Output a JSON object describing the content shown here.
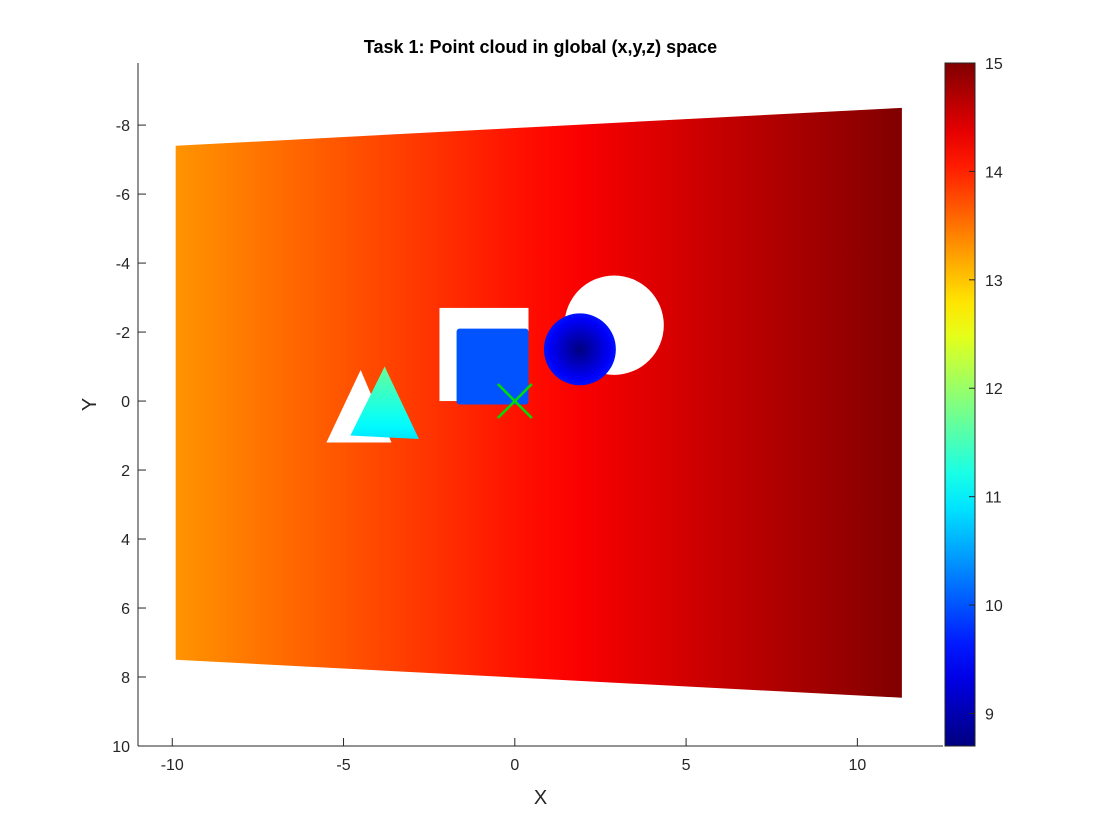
{
  "chart_data": {
    "type": "scatter",
    "title": "Task 1: Point cloud in global (x,y,z) space",
    "xlabel": "X",
    "ylabel": "Y",
    "xlim": [
      -11,
      12.5
    ],
    "ylim": [
      -9.8,
      10
    ],
    "y_direction": "reversed",
    "xticks": [
      -10,
      -5,
      0,
      5,
      10
    ],
    "yticks": [
      -8,
      -6,
      -4,
      -2,
      0,
      2,
      4,
      6,
      8,
      10
    ],
    "grid": false,
    "colormap": "jet",
    "color_variable": "z",
    "colorbar": {
      "position": "right",
      "limits": [
        8.7,
        15
      ],
      "ticks": [
        9,
        10,
        11,
        12,
        13,
        14,
        15
      ]
    },
    "background_plane": {
      "name": "plane",
      "corners": [
        {
          "x": -9.9,
          "y": -7.4
        },
        {
          "x": 11.3,
          "y": -8.5
        },
        {
          "x": 11.3,
          "y": 8.6
        },
        {
          "x": -9.9,
          "y": 7.5
        }
      ],
      "z_at_x_min": 13.3,
      "z_at_x_max": 15.0
    },
    "shadows": [
      {
        "shape": "triangle",
        "vertices": [
          {
            "x": -5.5,
            "y": 1.2
          },
          {
            "x": -4.5,
            "y": -0.9
          },
          {
            "x": -3.6,
            "y": 1.2
          }
        ]
      },
      {
        "shape": "rectangle",
        "x_range": [
          -2.2,
          0.4
        ],
        "y_range": [
          -2.7,
          0.0
        ]
      },
      {
        "shape": "circle",
        "center": {
          "x": 2.9,
          "y": -2.2
        },
        "radius": 1.45
      }
    ],
    "objects": [
      {
        "shape": "triangle",
        "vertices": [
          {
            "x": -4.8,
            "y": 1.0
          },
          {
            "x": -3.8,
            "y": -1.0
          },
          {
            "x": -2.8,
            "y": 1.1
          }
        ],
        "z_min": 10.9,
        "z_max": 11.7
      },
      {
        "shape": "rectangle",
        "x_range": [
          -1.7,
          0.4
        ],
        "y_range": [
          -2.1,
          0.1
        ],
        "z": 10.0
      },
      {
        "shape": "circle",
        "center": {
          "x": 1.9,
          "y": -1.5
        },
        "radius": 1.05,
        "z_center": 8.7,
        "z_edge": 9.6
      }
    ],
    "marker": {
      "shape": "x",
      "x": 0.0,
      "y": 0.0,
      "color": "#00dd00"
    }
  }
}
